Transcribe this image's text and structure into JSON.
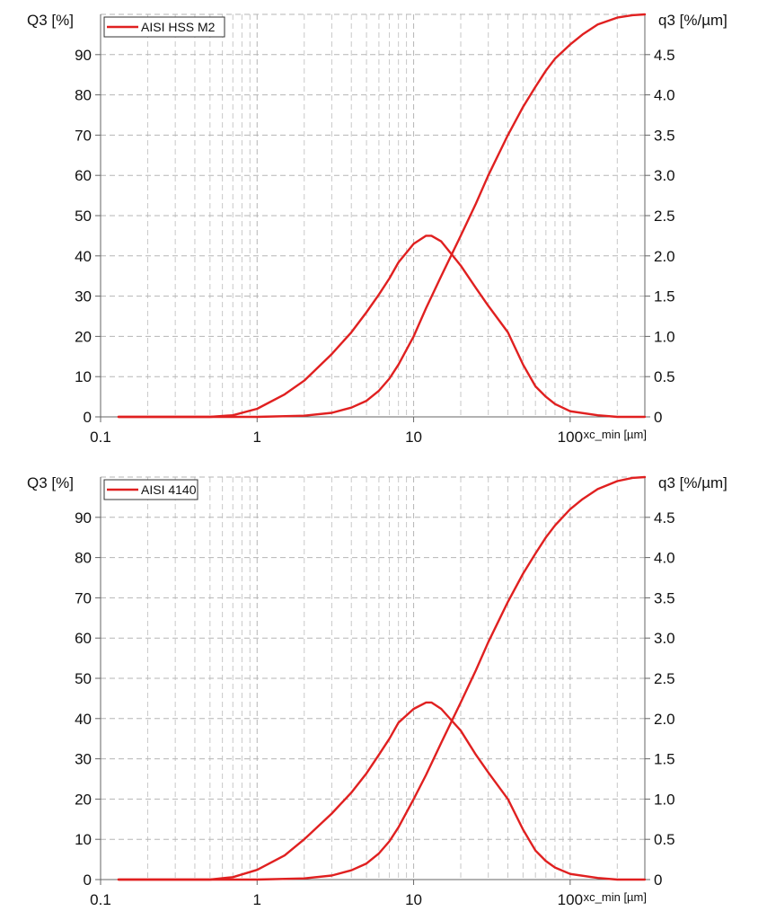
{
  "chart_data": [
    {
      "type": "line",
      "legend": "AISI HSS M2",
      "legend_position": "top-left",
      "grid": true,
      "x_scale": "log",
      "xlabel": "xc_min [µm]",
      "ylabel_left": "Q3 [%]",
      "ylabel_right": "q3 [%/µm]",
      "xlim": [
        0.1,
        300
      ],
      "ylim_left": [
        0,
        100
      ],
      "ylim_right": [
        0,
        5
      ],
      "x_ticks": [
        "0.1",
        "1",
        "10",
        "100"
      ],
      "y_ticks_left": [
        "0",
        "10",
        "20",
        "30",
        "40",
        "50",
        "60",
        "70",
        "80",
        "90"
      ],
      "y_ticks_right": [
        "0",
        "0.5",
        "1.0",
        "1.5",
        "2.0",
        "2.5",
        "3.0",
        "3.5",
        "4.0",
        "4.5"
      ],
      "series": [
        {
          "kind": "cumulative Q3",
          "axis": "left",
          "color": "#e02020",
          "x": [
            0.13,
            1,
            2,
            3,
            4,
            5,
            6,
            7,
            8,
            10,
            12,
            15,
            20,
            25,
            30,
            40,
            50,
            60,
            70,
            80,
            100,
            120,
            150,
            200,
            250,
            300
          ],
          "y": [
            0,
            0,
            0.3,
            1,
            2.3,
            4,
            6.5,
            9.5,
            13,
            20,
            27,
            35,
            45,
            53,
            60,
            70,
            77,
            82,
            86,
            89,
            92.5,
            95,
            97.5,
            99.2,
            99.8,
            100
          ]
        },
        {
          "kind": "density q3",
          "axis": "right",
          "color": "#e02020",
          "x": [
            0.13,
            0.5,
            0.7,
            1,
            1.5,
            2,
            3,
            4,
            5,
            6,
            7,
            8,
            10,
            12,
            13,
            15,
            20,
            25,
            30,
            40,
            50,
            60,
            70,
            80,
            100,
            150,
            200,
            300
          ],
          "y": [
            0,
            0,
            0.02,
            0.1,
            0.28,
            0.45,
            0.78,
            1.05,
            1.3,
            1.52,
            1.72,
            1.92,
            2.15,
            2.25,
            2.25,
            2.18,
            1.88,
            1.6,
            1.38,
            1.05,
            0.65,
            0.38,
            0.25,
            0.16,
            0.07,
            0.02,
            0,
            0
          ]
        }
      ]
    },
    {
      "type": "line",
      "legend": "AISI 4140",
      "legend_position": "top-left",
      "grid": true,
      "x_scale": "log",
      "xlabel": "xc_min [µm]",
      "ylabel_left": "Q3 [%]",
      "ylabel_right": "q3 [%/µm]",
      "xlim": [
        0.1,
        300
      ],
      "ylim_left": [
        0,
        100
      ],
      "ylim_right": [
        0,
        5
      ],
      "x_ticks": [
        "0.1",
        "1",
        "10",
        "100"
      ],
      "y_ticks_left": [
        "0",
        "10",
        "20",
        "30",
        "40",
        "50",
        "60",
        "70",
        "80",
        "90"
      ],
      "y_ticks_right": [
        "0",
        "0.5",
        "1.0",
        "1.5",
        "2.0",
        "2.5",
        "3.0",
        "3.5",
        "4.0",
        "4.5"
      ],
      "series": [
        {
          "kind": "cumulative Q3",
          "axis": "left",
          "color": "#e02020",
          "x": [
            0.13,
            1,
            2,
            3,
            4,
            5,
            6,
            7,
            8,
            10,
            12,
            15,
            20,
            25,
            30,
            40,
            50,
            60,
            70,
            80,
            100,
            120,
            150,
            200,
            250,
            300
          ],
          "y": [
            0,
            0,
            0.3,
            1,
            2.3,
            4,
            6.5,
            9.5,
            13,
            20,
            26,
            34,
            44,
            52,
            59,
            69,
            76,
            81,
            85,
            88,
            92,
            94.5,
            97,
            99,
            99.8,
            100
          ]
        },
        {
          "kind": "density q3",
          "axis": "right",
          "color": "#e02020",
          "x": [
            0.13,
            0.5,
            0.7,
            1,
            1.5,
            2,
            3,
            4,
            5,
            6,
            7,
            8,
            10,
            12,
            13,
            15,
            20,
            25,
            30,
            40,
            50,
            60,
            70,
            80,
            100,
            150,
            200,
            300
          ],
          "y": [
            0,
            0,
            0.03,
            0.12,
            0.3,
            0.5,
            0.82,
            1.08,
            1.32,
            1.55,
            1.75,
            1.95,
            2.12,
            2.2,
            2.2,
            2.12,
            1.85,
            1.55,
            1.33,
            1.0,
            0.62,
            0.36,
            0.23,
            0.15,
            0.07,
            0.02,
            0,
            0
          ]
        }
      ]
    }
  ]
}
